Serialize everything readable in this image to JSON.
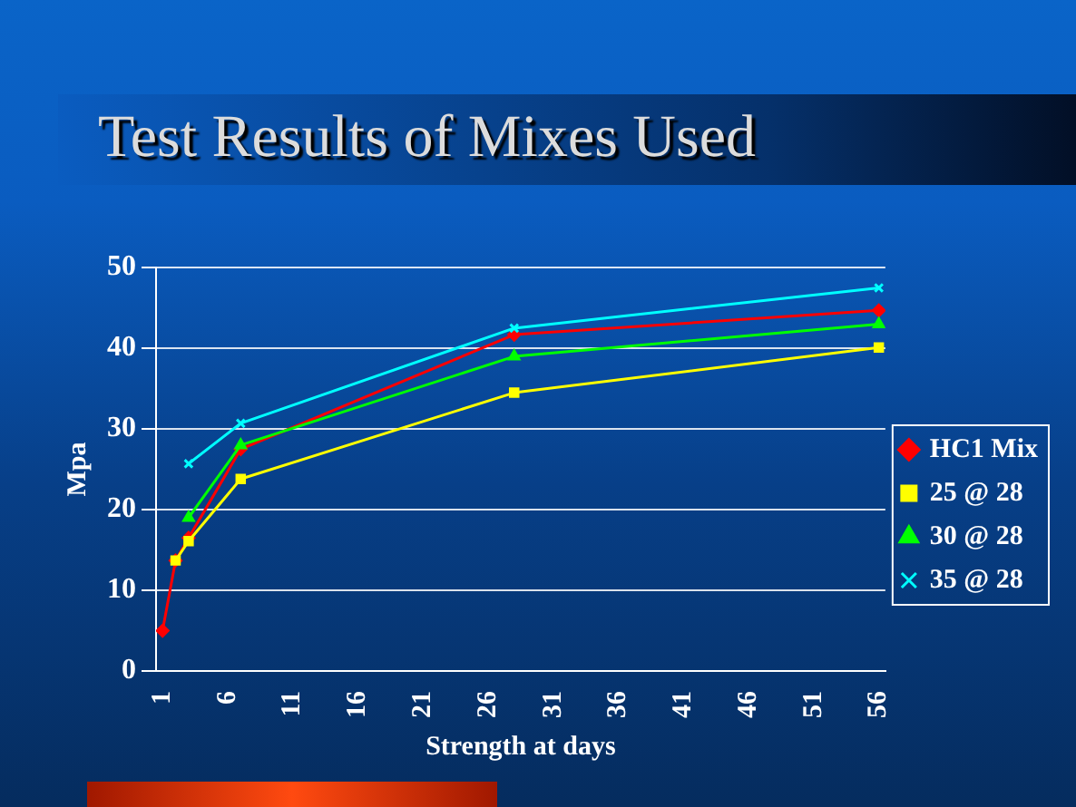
{
  "chart_data": {
    "type": "line",
    "title": "Test Results of Mixes Used",
    "xlabel": "Strength at days",
    "ylabel": "Mpa",
    "xlim": [
      0.5,
      56.5
    ],
    "xticks": [
      1,
      6,
      11,
      16,
      21,
      26,
      31,
      36,
      41,
      46,
      51,
      56
    ],
    "ylim": [
      0,
      50
    ],
    "yticks": [
      0,
      10,
      20,
      30,
      40,
      50
    ],
    "grid": "y",
    "legend": "right",
    "series": [
      {
        "name": "HC1 Mix",
        "color": "#ff0000",
        "marker": "diamond",
        "x": [
          1,
          2,
          3,
          7,
          28,
          56
        ],
        "values": [
          5,
          13.7,
          16.5,
          27.5,
          41.7,
          44.7
        ]
      },
      {
        "name": "25 @ 28",
        "color": "#ffff00",
        "marker": "square",
        "x": [
          2,
          3,
          7,
          28,
          56
        ],
        "values": [
          13.7,
          16.1,
          23.8,
          34.5,
          40.1
        ]
      },
      {
        "name": "30 @ 28",
        "color": "#00ff00",
        "marker": "triangle",
        "x": [
          3,
          7,
          28,
          56
        ],
        "values": [
          19,
          28,
          39,
          43
        ]
      },
      {
        "name": "35 @ 28",
        "color": "#00ffff",
        "marker": "cross",
        "x": [
          3,
          7,
          28,
          56
        ],
        "values": [
          25.7,
          30.7,
          42.5,
          47.5
        ]
      }
    ]
  }
}
